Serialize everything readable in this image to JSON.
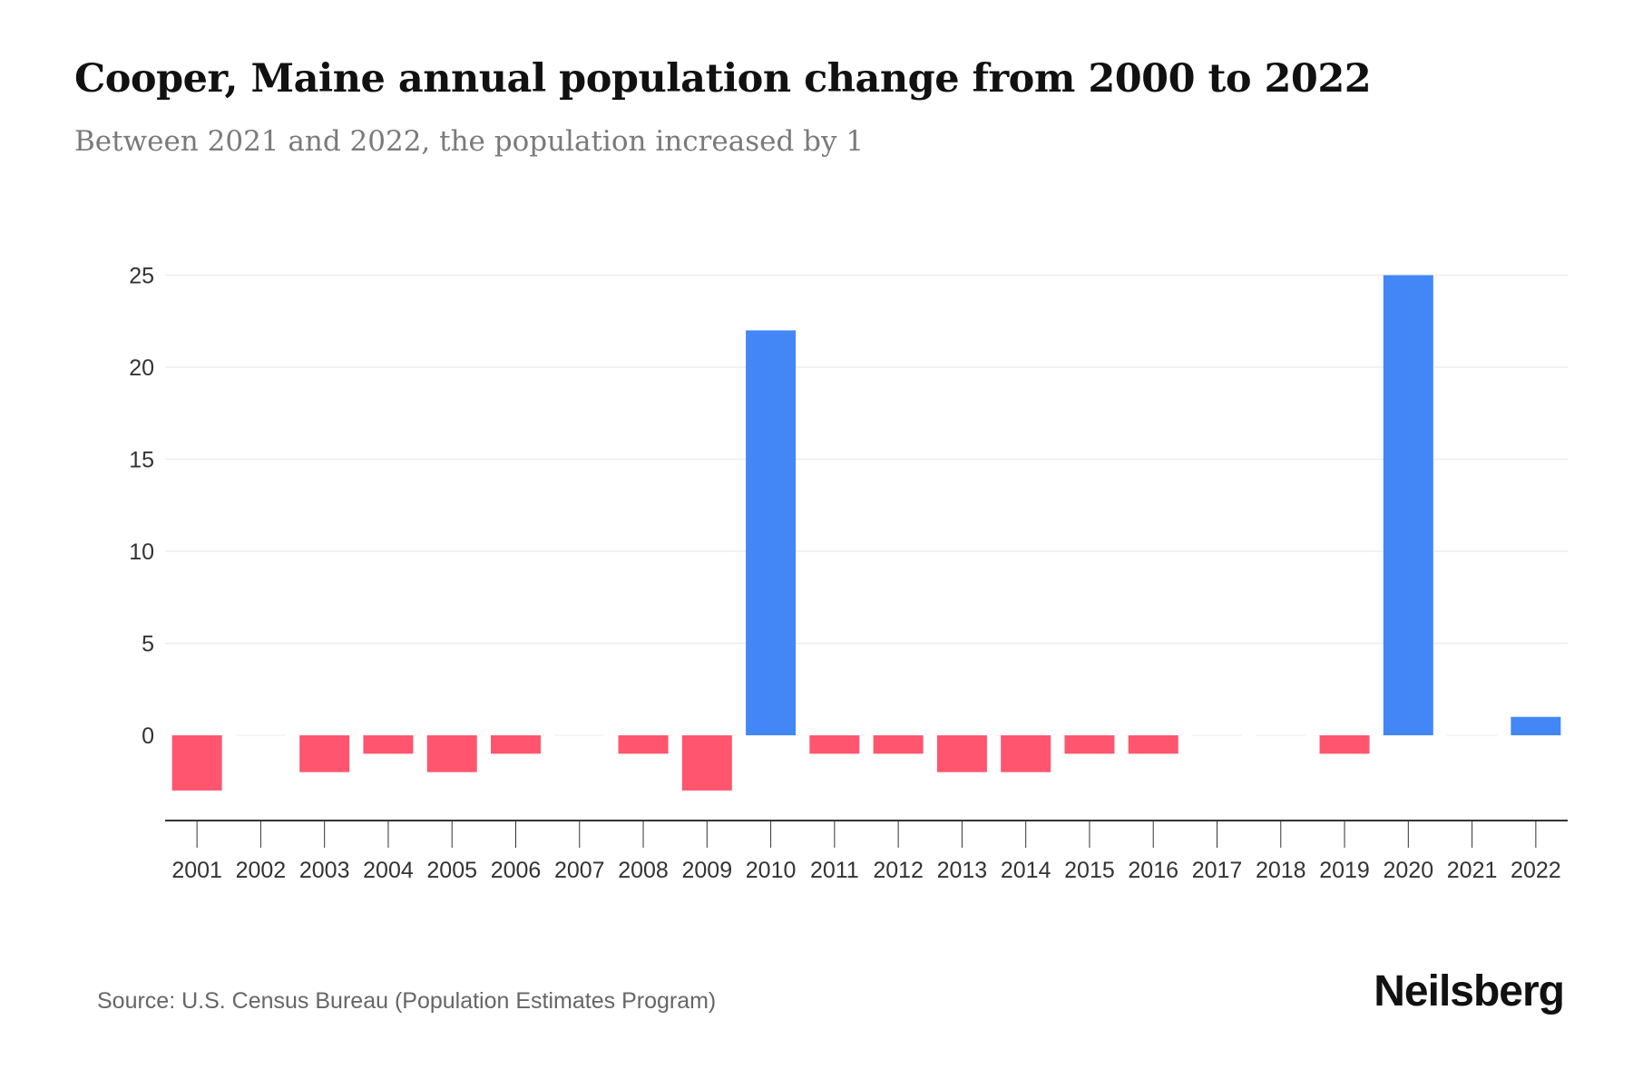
{
  "chart_data": {
    "type": "bar",
    "title": "Cooper, Maine annual population change from 2000 to 2022",
    "subtitle": "Between 2021 and 2022, the population increased by 1",
    "xlabel": "",
    "ylabel": "",
    "categories": [
      "2001",
      "2002",
      "2003",
      "2004",
      "2005",
      "2006",
      "2007",
      "2008",
      "2009",
      "2010",
      "2011",
      "2012",
      "2013",
      "2014",
      "2015",
      "2016",
      "2017",
      "2018",
      "2019",
      "2020",
      "2021",
      "2022"
    ],
    "values": [
      -3,
      0,
      -2,
      -1,
      -2,
      -1,
      0,
      -1,
      -3,
      22,
      -1,
      -1,
      -2,
      -2,
      -1,
      -1,
      0,
      0,
      -1,
      25,
      0,
      1
    ],
    "yticks": [
      0,
      5,
      10,
      15,
      20,
      25
    ],
    "ylim": [
      -4.5,
      25
    ],
    "grid": true,
    "colors": {
      "positive": "#4287f5",
      "negative": "#ff556e"
    }
  },
  "footer": {
    "source": "Source: U.S. Census Bureau (Population Estimates Program)",
    "brand": "Neilsberg"
  }
}
